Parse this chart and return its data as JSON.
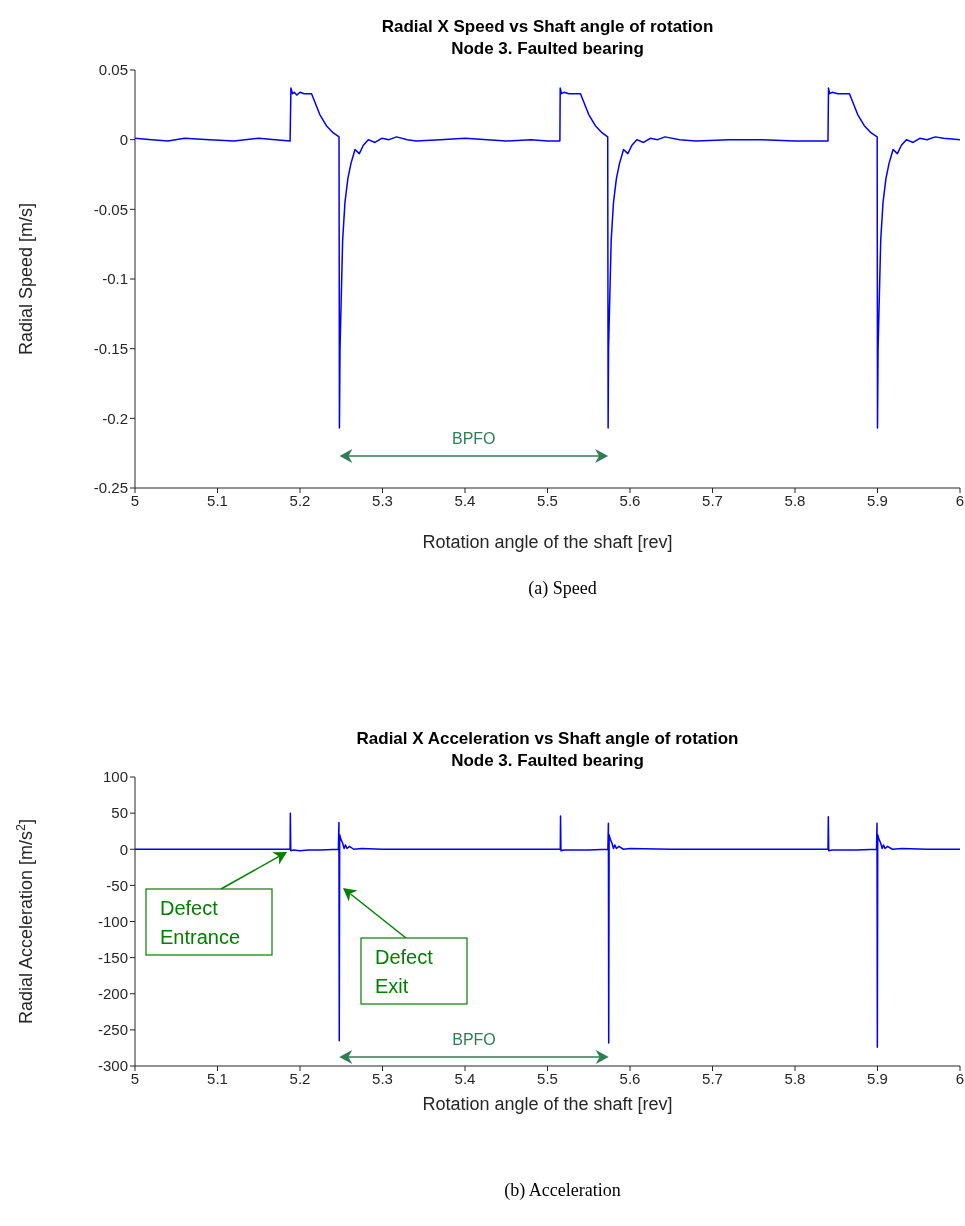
{
  "chart_data": [
    {
      "type": "line",
      "title": "Radial X Speed vs Shaft angle of rotation",
      "subtitle": "Node 3. Faulted bearing",
      "xlabel": "Rotation angle of the shaft [rev]",
      "ylabel": "Radial Speed [m/s]",
      "x": [
        5.0,
        5.02,
        5.04,
        5.06,
        5.09,
        5.12,
        5.15,
        5.17,
        5.188,
        5.189,
        5.191,
        5.193,
        5.196,
        5.2,
        5.205,
        5.214,
        5.224,
        5.232,
        5.24,
        5.2473,
        5.2478,
        5.2485,
        5.2517,
        5.2545,
        5.258,
        5.2618,
        5.2667,
        5.2719,
        5.2768,
        5.2828,
        5.2909,
        5.299,
        5.308,
        5.317,
        5.33,
        5.341,
        5.37,
        5.4,
        5.45,
        5.48,
        5.5,
        5.515,
        5.5154,
        5.517,
        5.52,
        5.526,
        5.54,
        5.55,
        5.558,
        5.566,
        5.573,
        5.5735,
        5.574,
        5.5772,
        5.58,
        5.5835,
        5.5873,
        5.5922,
        5.5974,
        5.6023,
        5.6083,
        5.6164,
        5.6245,
        5.6335,
        5.6425,
        5.66,
        5.68,
        5.72,
        5.76,
        5.8,
        5.84,
        5.8406,
        5.842,
        5.845,
        5.852,
        5.866,
        5.876,
        5.884,
        5.892,
        5.8996,
        5.9,
        5.9007,
        5.9039,
        5.9067,
        5.9102,
        5.914,
        5.9189,
        5.9241,
        5.929,
        5.935,
        5.9431,
        5.9512,
        5.96,
        5.97,
        5.98,
        6.0
      ],
      "series": [
        {
          "color": "#0000ff",
          "values": [
            0.001,
            0,
            -0.001,
            0.001,
            0,
            -0.001,
            0.001,
            0,
            -0.001,
            0.037,
            0.033,
            0.034,
            0.032,
            0.034,
            0.033,
            0.033,
            0.018,
            0.01,
            0.005,
            0.002,
            -0.207,
            -0.15,
            -0.072,
            -0.045,
            -0.028,
            -0.017,
            -0.007,
            -0.01,
            -0.004,
            0,
            -0.002,
            0.001,
            0,
            0.002,
            0,
            -0.001,
            0,
            0.001,
            -0.001,
            0,
            -0.001,
            -0.001,
            0.037,
            0.033,
            0.034,
            0.033,
            0.033,
            0.018,
            0.01,
            0.005,
            0.002,
            -0.207,
            -0.15,
            -0.072,
            -0.045,
            -0.028,
            -0.017,
            -0.007,
            -0.01,
            -0.004,
            0,
            -0.002,
            0.001,
            0,
            0.002,
            0,
            -0.001,
            0,
            0,
            -0.001,
            -0.001,
            0.037,
            0.033,
            0.034,
            0.033,
            0.033,
            0.018,
            0.01,
            0.005,
            0.002,
            -0.207,
            -0.15,
            -0.072,
            -0.045,
            -0.028,
            -0.017,
            -0.007,
            -0.01,
            -0.004,
            0,
            -0.002,
            0.001,
            0,
            0.002,
            0.001,
            0
          ]
        }
      ],
      "xlim": [
        5,
        6
      ],
      "xticks": [
        5,
        5.1,
        5.2,
        5.3,
        5.4,
        5.5,
        5.6,
        5.7,
        5.8,
        5.9,
        6
      ],
      "ylim": [
        -0.25,
        0.05
      ],
      "yticks": [
        -0.25,
        -0.2,
        -0.15,
        -0.1,
        -0.05,
        0,
        0.05
      ],
      "annotations": [
        "BPFO",
        "(a) Speed"
      ]
    },
    {
      "type": "line",
      "title": "Radial X Acceleration vs Shaft angle of rotation",
      "subtitle": "Node 3. Faulted bearing",
      "xlabel": "Rotation angle of the shaft [rev]",
      "ylabel": "Radial Acceleration [m/s$^{2}$]",
      "x": [
        5.0,
        5.1,
        5.188,
        5.1883,
        5.1888,
        5.192,
        5.2,
        5.21,
        5.225,
        5.2465,
        5.2472,
        5.2476,
        5.2481,
        5.2495,
        5.2515,
        5.2535,
        5.255,
        5.257,
        5.26,
        5.265,
        5.275,
        5.3,
        5.4,
        5.5,
        5.5155,
        5.5158,
        5.5163,
        5.52,
        5.53,
        5.55,
        5.5732,
        5.5738,
        5.5742,
        5.5747,
        5.576,
        5.578,
        5.58,
        5.5815,
        5.5835,
        5.5865,
        5.592,
        5.6,
        5.65,
        5.75,
        5.84,
        5.8404,
        5.8409,
        5.845,
        5.855,
        5.875,
        5.8988,
        5.8994,
        5.8998,
        5.9003,
        5.9017,
        5.9037,
        5.9057,
        5.9072,
        5.9092,
        5.9122,
        5.918,
        5.93,
        5.96,
        6.0
      ],
      "series": [
        {
          "color": "#0000ff",
          "values": [
            0,
            0,
            0,
            50,
            -2,
            -1,
            -2,
            -1,
            -1,
            0,
            37,
            -265,
            20,
            14,
            9,
            1,
            6,
            1,
            4,
            0,
            1,
            0,
            0,
            0,
            0,
            46,
            -2,
            -1,
            -1,
            -1,
            0,
            36,
            -268,
            20,
            14,
            9,
            1,
            6,
            1,
            4,
            0,
            1,
            0,
            0,
            0,
            45,
            -2,
            -1,
            -1,
            -1,
            0,
            36,
            -274,
            20,
            14,
            9,
            1,
            6,
            1,
            4,
            0,
            1,
            0,
            0
          ]
        }
      ],
      "xlim": [
        5,
        6
      ],
      "xticks": [
        5,
        5.1,
        5.2,
        5.3,
        5.4,
        5.5,
        5.6,
        5.7,
        5.8,
        5.9,
        6
      ],
      "ylim": [
        -300,
        100
      ],
      "yticks": [
        -300,
        -250,
        -200,
        -150,
        -100,
        -50,
        0,
        50,
        100
      ],
      "annotations": [
        "Defect Entrance",
        "Defect Exit",
        "BPFO",
        "(b) Acceleration"
      ]
    }
  ]
}
